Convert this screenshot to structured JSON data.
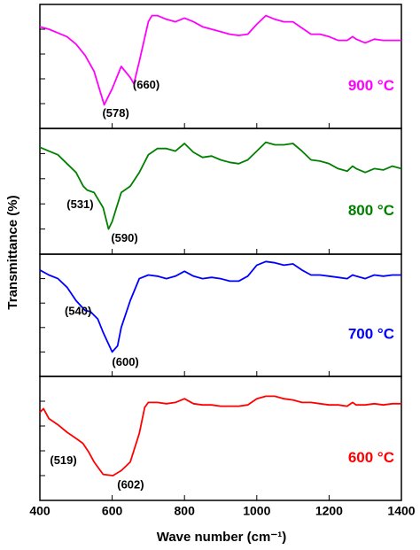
{
  "chart_data": [
    {
      "type": "line",
      "title": "900 °C",
      "color": "#ff00ff",
      "ylabel": "Transmittance (%)",
      "x": [
        400,
        425,
        450,
        475,
        500,
        525,
        550,
        578,
        600,
        625,
        650,
        660,
        675,
        700,
        710,
        725,
        750,
        775,
        800,
        825,
        850,
        875,
        900,
        925,
        950,
        975,
        1000,
        1025,
        1050,
        1075,
        1100,
        1125,
        1150,
        1175,
        1200,
        1225,
        1250,
        1265,
        1275,
        1300,
        1325,
        1350,
        1375,
        1400
      ],
      "values": [
        82,
        80,
        77,
        74,
        68,
        59,
        46,
        19,
        32,
        50,
        41,
        36,
        54,
        86,
        91,
        91,
        88,
        86,
        89,
        86,
        82,
        80,
        78,
        76,
        75,
        76,
        84,
        91,
        88,
        86,
        86,
        81,
        76,
        76,
        74,
        71,
        71,
        74,
        72,
        69,
        72,
        71,
        71,
        71
      ],
      "xlim": [
        400,
        1400
      ],
      "ylim": [
        0,
        100
      ],
      "yticks": [
        20,
        40,
        60,
        80
      ],
      "annotations": [
        {
          "label": "(578)",
          "x": 578
        },
        {
          "label": "(660)",
          "x": 660
        }
      ]
    },
    {
      "type": "line",
      "title": "800 °C",
      "color": "#008000",
      "x": [
        400,
        425,
        450,
        475,
        500,
        520,
        531,
        550,
        575,
        590,
        600,
        625,
        650,
        675,
        700,
        725,
        750,
        775,
        800,
        825,
        850,
        875,
        900,
        925,
        950,
        975,
        1000,
        1025,
        1050,
        1075,
        1100,
        1125,
        1150,
        1175,
        1200,
        1225,
        1250,
        1265,
        1275,
        1300,
        1325,
        1350,
        1375,
        1400
      ],
      "values": [
        85,
        82,
        79,
        72,
        65,
        54,
        51,
        49,
        37,
        20,
        26,
        49,
        54,
        65,
        79,
        84,
        84,
        82,
        88,
        81,
        77,
        78,
        75,
        73,
        72,
        75,
        82,
        89,
        87,
        87,
        88,
        82,
        75,
        74,
        72,
        68,
        66,
        70,
        68,
        65,
        68,
        67,
        70,
        68
      ],
      "xlim": [
        400,
        1400
      ],
      "ylim": [
        0,
        100
      ],
      "yticks": [
        20,
        40,
        60,
        80
      ],
      "annotations": [
        {
          "label": "(531)",
          "x": 531
        },
        {
          "label": "(590)",
          "x": 590
        }
      ]
    },
    {
      "type": "line",
      "title": "700 °C",
      "color": "#0000ff",
      "x": [
        400,
        425,
        450,
        475,
        500,
        525,
        540,
        560,
        575,
        600,
        615,
        625,
        650,
        675,
        700,
        725,
        750,
        775,
        800,
        825,
        850,
        875,
        900,
        925,
        950,
        975,
        1000,
        1025,
        1050,
        1075,
        1100,
        1125,
        1150,
        1175,
        1200,
        1225,
        1250,
        1265,
        1275,
        1300,
        1325,
        1350,
        1375,
        1400
      ],
      "values": [
        87,
        83,
        80,
        73,
        62,
        54,
        53,
        47,
        36,
        20,
        25,
        40,
        62,
        80,
        83,
        82,
        80,
        82,
        86,
        82,
        80,
        81,
        80,
        78,
        78,
        82,
        91,
        94,
        93,
        91,
        92,
        87,
        83,
        83,
        82,
        81,
        80,
        83,
        82,
        80,
        83,
        82,
        83,
        83
      ],
      "xlim": [
        400,
        1400
      ],
      "ylim": [
        0,
        100
      ],
      "yticks": [
        20,
        40,
        60,
        80
      ],
      "annotations": [
        {
          "label": "(540)",
          "x": 540
        },
        {
          "label": "(600)",
          "x": 600
        }
      ]
    },
    {
      "type": "line",
      "title": "600 °C",
      "color": "#ff0000",
      "xlabel": "Wave number (cm⁻¹)",
      "x": [
        400,
        410,
        425,
        450,
        475,
        500,
        519,
        535,
        550,
        575,
        602,
        625,
        650,
        675,
        690,
        700,
        725,
        750,
        775,
        800,
        825,
        850,
        875,
        900,
        925,
        950,
        975,
        1000,
        1025,
        1050,
        1075,
        1100,
        1125,
        1150,
        1175,
        1200,
        1225,
        1250,
        1265,
        1275,
        1300,
        1325,
        1350,
        1375,
        1400
      ],
      "values": [
        71,
        74,
        66,
        61,
        55,
        50,
        46,
        39,
        31,
        21,
        20,
        24,
        31,
        54,
        75,
        79,
        79,
        78,
        79,
        82,
        78,
        77,
        77,
        76,
        76,
        76,
        77,
        82,
        84,
        84,
        82,
        81,
        79,
        79,
        78,
        77,
        77,
        76,
        79,
        77,
        77,
        78,
        77,
        78,
        78
      ],
      "xlim": [
        400,
        1400
      ],
      "ylim": [
        0,
        100
      ],
      "yticks": [
        20,
        40,
        60,
        80
      ],
      "xticks": [
        400,
        600,
        800,
        1000,
        1200,
        1400
      ],
      "annotations": [
        {
          "label": "(519)",
          "x": 519
        },
        {
          "label": "(602)",
          "x": 602
        }
      ]
    }
  ]
}
